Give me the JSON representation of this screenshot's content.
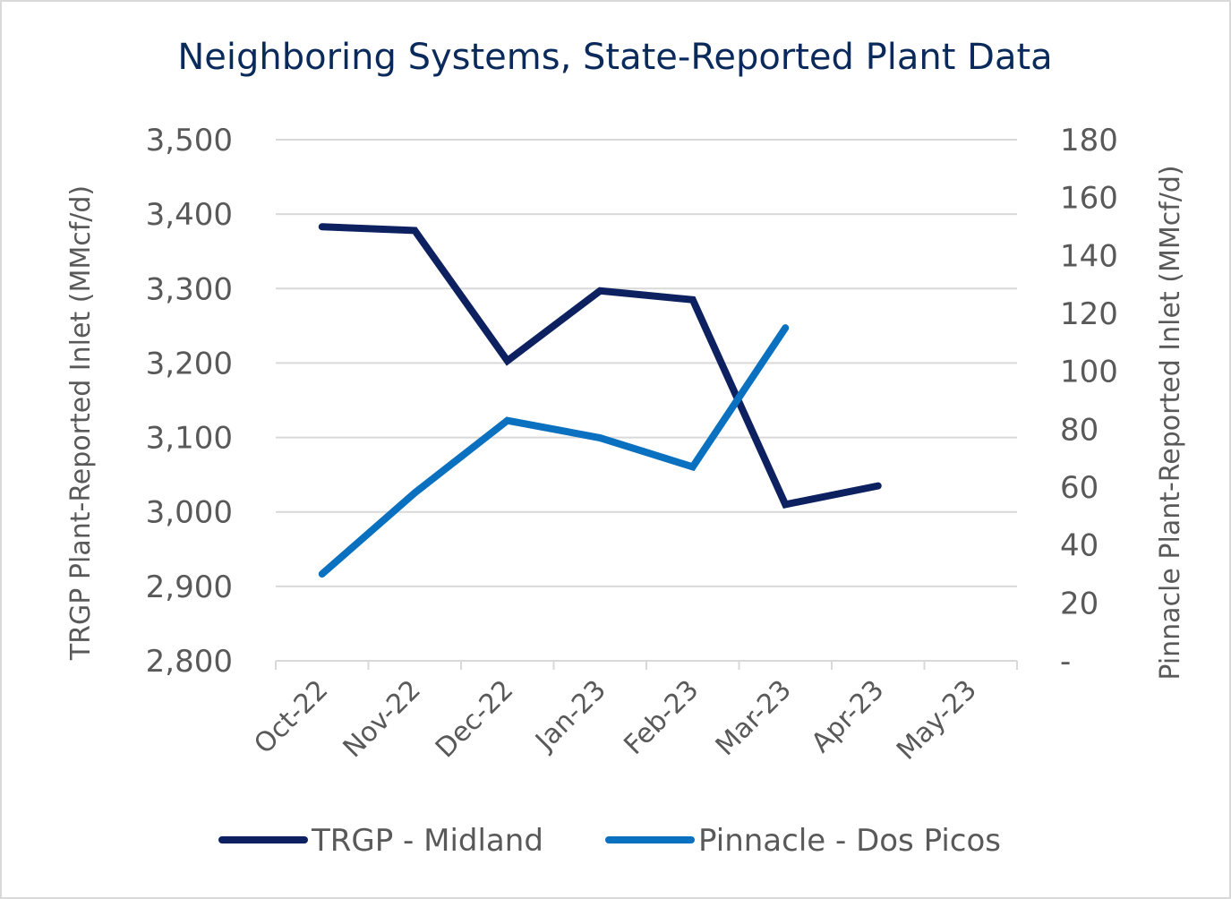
{
  "chart_data": {
    "type": "line",
    "title": "Neighboring Systems, State-Reported Plant Data",
    "categories": [
      "Oct-22",
      "Nov-22",
      "Dec-22",
      "Jan-23",
      "Feb-23",
      "Mar-23",
      "Apr-23",
      "May-23"
    ],
    "y_left": {
      "label": "TRGP Plant-Reported Inlet  (MMcf/d)",
      "range": [
        2800,
        3500
      ],
      "ticks": [
        2800,
        2900,
        3000,
        3100,
        3200,
        3300,
        3400,
        3500
      ],
      "tick_labels": [
        "2,800",
        "2,900",
        "3,000",
        "3,100",
        "3,200",
        "3,300",
        "3,400",
        "3,500"
      ]
    },
    "y_right": {
      "label": "Pinnacle Plant-Reported Inlet (MMcf/d)",
      "range": [
        0,
        180
      ],
      "ticks": [
        0,
        20,
        40,
        60,
        80,
        100,
        120,
        140,
        160,
        180
      ],
      "tick_labels": [
        "-",
        "20",
        "40",
        "60",
        "80",
        "100",
        "120",
        "140",
        "160",
        "180"
      ]
    },
    "series": [
      {
        "name": "TRGP - Midland",
        "axis": "left",
        "color": "#0d2160",
        "values": [
          3383,
          3378,
          3203,
          3297,
          3285,
          3010,
          3035,
          null
        ]
      },
      {
        "name": "Pinnacle - Dos Picos",
        "axis": "right",
        "color": "#0a70c0",
        "values": [
          30,
          58,
          83,
          77,
          67,
          115,
          null,
          null
        ]
      }
    ],
    "legend_position": "bottom",
    "grid": true
  }
}
